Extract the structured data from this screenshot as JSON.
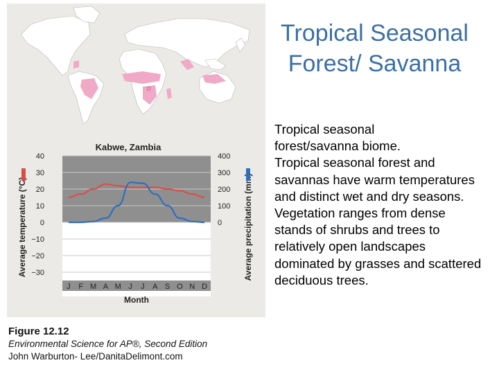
{
  "slide": {
    "title_line1": "Tropical Seasonal",
    "title_line2": "Forest/ Savanna",
    "desc_lead_line1": "Tropical seasonal",
    "desc_lead_line2": "forest/savanna biome.",
    "desc_body": "Tropical seasonal forest and savannas have warm temperatures and distinct wet and dry seasons. Vegetation ranges from dense stands of shrubs and trees to relatively open landscapes dominated by grasses and scattered deciduous trees."
  },
  "caption": {
    "figure": "Figure 12.12",
    "source": "Environmental Science for AP®, Second Edition",
    "credit": "John Warburton- Lee/DanitaDelimont.com"
  },
  "colors": {
    "temperature": "#d94f45",
    "precipitation": "#2e6fbe",
    "biome": "#f0a9c6",
    "land": "#ffffff",
    "ocean": "#eceae6"
  },
  "chart_data": {
    "type": "line",
    "title": "Kabwe, Zambia",
    "xlabel": "Month",
    "categories": [
      "J",
      "F",
      "M",
      "A",
      "M",
      "J",
      "J",
      "A",
      "S",
      "O",
      "N",
      "D"
    ],
    "y_left": {
      "label": "Average temperature (°C)",
      "ylim": [
        -30,
        40
      ],
      "ticks": [
        "40",
        "30",
        "20",
        "10",
        "0",
        "−10",
        "−20",
        "−30"
      ]
    },
    "y_right": {
      "label": "Average precipitation (mm)",
      "ylim": [
        0,
        400
      ],
      "ticks": [
        "400",
        "300",
        "200",
        "100",
        "0"
      ]
    },
    "series": [
      {
        "name": "temperature",
        "axis": "left",
        "values": [
          15,
          17,
          20,
          23,
          22,
          21,
          21,
          21,
          20,
          19,
          17,
          15
        ]
      },
      {
        "name": "precipitation",
        "axis": "right",
        "values": [
          0,
          0,
          5,
          25,
          100,
          240,
          235,
          170,
          100,
          25,
          5,
          0
        ]
      }
    ]
  }
}
